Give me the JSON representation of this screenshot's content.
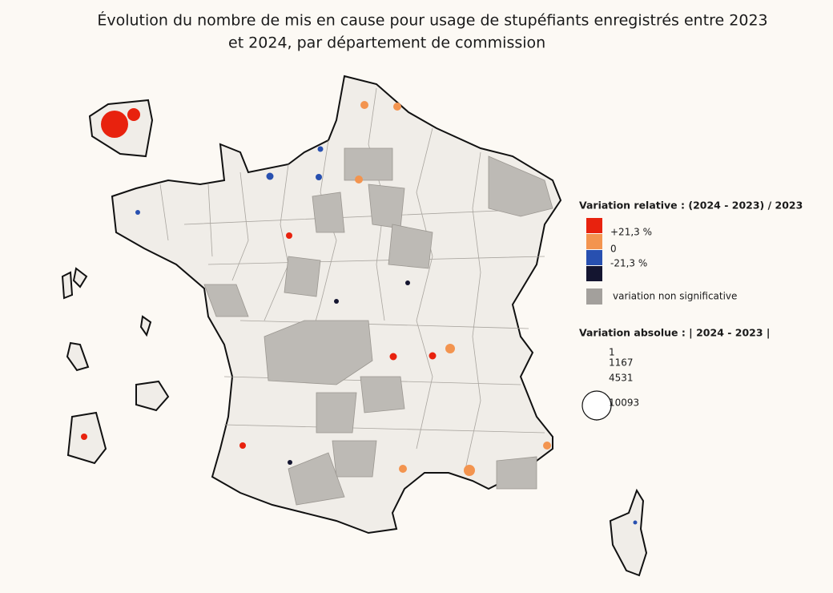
{
  "title": [
    "Évolution du nombre de mis en cause pour usage de stupéfiants enregistrés entre 2023",
    "et 2024, par département de commission"
  ],
  "legend": {
    "relative_title": "Variation relative : (2024 - 2023) / 2023",
    "relative_items": [
      {
        "label": "+21,3 %",
        "color": "#e8220e"
      },
      {
        "label": "0",
        "color": "#f3944f"
      },
      {
        "label": "-21,3 %",
        "color": "#2850b0"
      },
      {
        "label": null,
        "color": "#141530"
      }
    ],
    "non_significant": {
      "label": "variation non significative",
      "color": "#a3a09c"
    },
    "absolute_title": "Variation absolue : | 2024 - 2023 |",
    "sizes": [
      1,
      1167,
      4531,
      10093
    ]
  }
}
